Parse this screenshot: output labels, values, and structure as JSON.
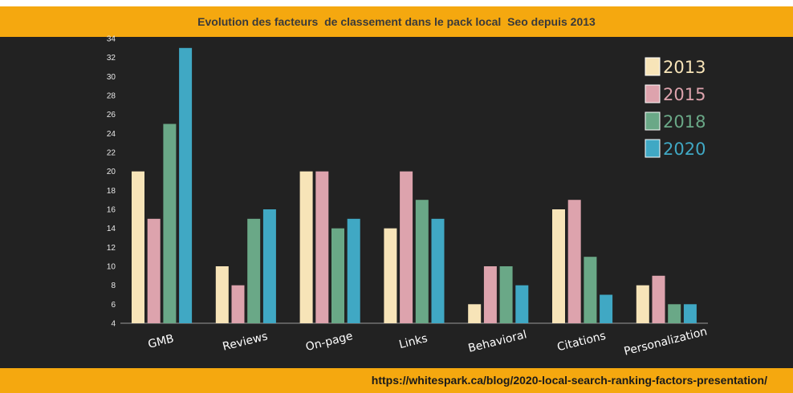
{
  "header": {
    "title": "Evolution des facteurs  de classement dans le pack local  Seo depuis 2013"
  },
  "footer": {
    "source": "https://whitespark.ca/blog/2020-local-search-ranking-factors-presentation/"
  },
  "colors": {
    "band": "#f5a80f",
    "plot_background": "#222222"
  },
  "chart_data": {
    "type": "bar",
    "title": "Evolution des facteurs  de classement dans le pack local  Seo depuis 2013",
    "xlabel": "",
    "ylabel": "",
    "categories": [
      "GMB",
      "Reviews",
      "On-page",
      "Links",
      "Behavioral",
      "Citations",
      "Personalization"
    ],
    "series": [
      {
        "name": "2013",
        "color": "#f7e4b8",
        "values": [
          20,
          10,
          20,
          14,
          6,
          16,
          8
        ]
      },
      {
        "name": "2015",
        "color": "#dda3ad",
        "values": [
          15,
          8,
          20,
          20,
          10,
          17,
          9
        ]
      },
      {
        "name": "2018",
        "color": "#6aa887",
        "values": [
          25,
          15,
          14,
          17,
          10,
          11,
          6
        ]
      },
      {
        "name": "2020",
        "color": "#40a8c4",
        "values": [
          33,
          16,
          15,
          15,
          8,
          7,
          6
        ]
      }
    ],
    "ylim": [
      4,
      34
    ],
    "yticks": [
      4,
      6,
      8,
      10,
      12,
      14,
      16,
      18,
      20,
      22,
      24,
      26,
      28,
      30,
      32,
      34
    ],
    "grid": false,
    "legend_position": "top-right"
  }
}
